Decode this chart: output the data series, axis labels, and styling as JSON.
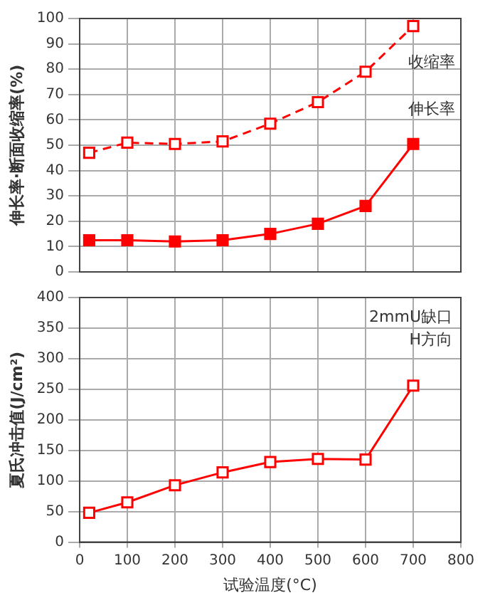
{
  "chart_data": [
    {
      "type": "line",
      "ylabel": "伸长率·断面收缩率(%)",
      "x": [
        20,
        100,
        200,
        300,
        400,
        500,
        600,
        700
      ],
      "xlim": [
        0,
        800
      ],
      "xticks": [
        0,
        100,
        200,
        300,
        400,
        500,
        600,
        700,
        800
      ],
      "ylim": [
        0,
        100
      ],
      "yticks": [
        0,
        10,
        20,
        30,
        40,
        50,
        60,
        70,
        80,
        90,
        100
      ],
      "grid": true,
      "tick_labels": "y",
      "marker": "square",
      "series": [
        {
          "name": "收缩率",
          "color": "#ff0000",
          "line_style": "dashed",
          "values": [
            47,
            51,
            50.5,
            51.5,
            58.5,
            67,
            79,
            97
          ]
        },
        {
          "name": "伸长率",
          "color": "#ff0000",
          "line_style": "solid",
          "values": [
            12.5,
            12.5,
            12,
            12.5,
            15,
            19,
            26,
            50.5
          ]
        }
      ]
    },
    {
      "type": "line",
      "xlabel": "试验温度(°C)",
      "ylabel": "夏氏冲击值(J/cm²)",
      "x": [
        20,
        100,
        200,
        300,
        400,
        500,
        600,
        700
      ],
      "xlim": [
        0,
        800
      ],
      "xticks": [
        0,
        100,
        200,
        300,
        400,
        500,
        600,
        700,
        800
      ],
      "ylim": [
        0,
        400
      ],
      "yticks": [
        0,
        50,
        100,
        150,
        200,
        250,
        300,
        350,
        400
      ],
      "grid": true,
      "marker": "square",
      "annotations": [
        "2mmU缺口",
        "H方向"
      ],
      "series": [
        {
          "color": "#ff0000",
          "line_style": "solid",
          "values": [
            48,
            65,
            93,
            114,
            131,
            136,
            135,
            256
          ]
        }
      ]
    }
  ]
}
